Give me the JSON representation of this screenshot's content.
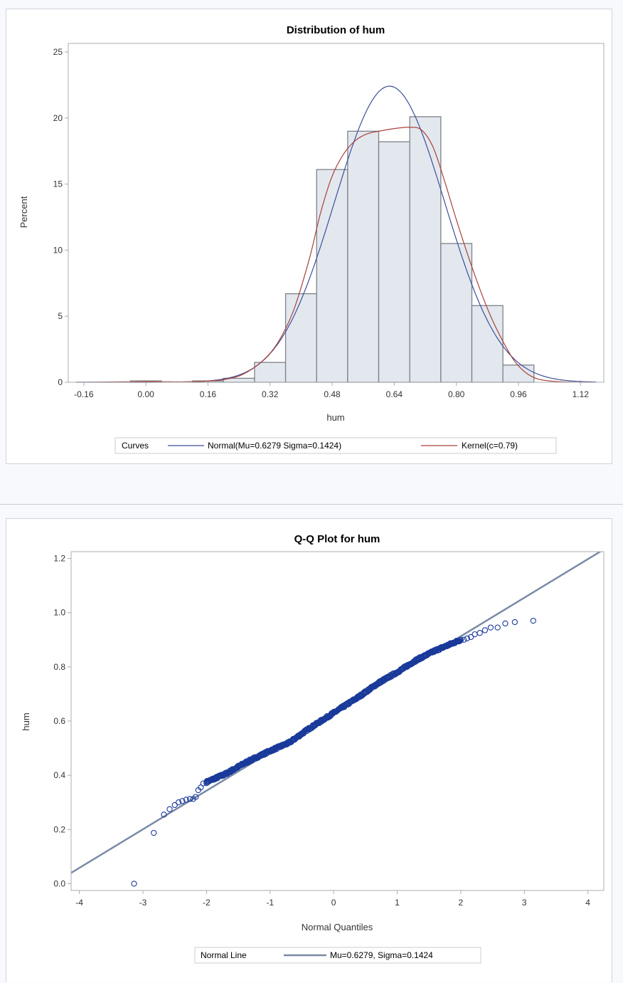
{
  "chart_data": [
    {
      "type": "bar",
      "title": "Distribution of hum",
      "xlabel": "hum",
      "ylabel": "Percent",
      "xlim": [
        -0.2,
        1.18
      ],
      "ylim": [
        0,
        25
      ],
      "xticks": [
        "-0.16",
        "0.00",
        "0.16",
        "0.32",
        "0.48",
        "0.64",
        "0.80",
        "0.96",
        "1.12"
      ],
      "xtick_values": [
        -0.16,
        0.0,
        0.16,
        0.32,
        0.48,
        0.64,
        0.8,
        0.96,
        1.12
      ],
      "yticks": [
        "0",
        "5",
        "10",
        "15",
        "20",
        "25"
      ],
      "ytick_values": [
        0,
        5,
        10,
        15,
        20,
        25
      ],
      "bin_width": 0.08,
      "bins": [
        {
          "center": 0.0,
          "value": 0.1
        },
        {
          "center": 0.08,
          "value": 0.0
        },
        {
          "center": 0.16,
          "value": 0.1
        },
        {
          "center": 0.24,
          "value": 0.3
        },
        {
          "center": 0.32,
          "value": 1.5
        },
        {
          "center": 0.4,
          "value": 6.7
        },
        {
          "center": 0.48,
          "value": 16.1
        },
        {
          "center": 0.56,
          "value": 19.0
        },
        {
          "center": 0.64,
          "value": 18.2
        },
        {
          "center": 0.72,
          "value": 20.1
        },
        {
          "center": 0.8,
          "value": 10.5
        },
        {
          "center": 0.88,
          "value": 5.8
        },
        {
          "center": 0.96,
          "value": 1.3
        }
      ],
      "curves": [
        {
          "name": "Normal(Mu=0.6279 Sigma=0.1424)",
          "kind": "normal",
          "mu": 0.6279,
          "sigma": 0.1424,
          "color": "#3d4f9a"
        },
        {
          "name": "Kernel(c=0.79)",
          "kind": "kernel",
          "c": 0.79,
          "color": "#a9423a",
          "points": [
            [
              -0.18,
              0.0
            ],
            [
              -0.05,
              0.03
            ],
            [
              0.0,
              0.06
            ],
            [
              0.05,
              0.04
            ],
            [
              0.1,
              0.03
            ],
            [
              0.15,
              0.08
            ],
            [
              0.2,
              0.2
            ],
            [
              0.25,
              0.6
            ],
            [
              0.3,
              1.6
            ],
            [
              0.34,
              3.0
            ],
            [
              0.38,
              5.4
            ],
            [
              0.42,
              9.2
            ],
            [
              0.45,
              12.8
            ],
            [
              0.48,
              15.6
            ],
            [
              0.51,
              17.3
            ],
            [
              0.54,
              18.3
            ],
            [
              0.57,
              18.8
            ],
            [
              0.6,
              19.0
            ],
            [
              0.64,
              19.2
            ],
            [
              0.68,
              19.3
            ],
            [
              0.71,
              19.1
            ],
            [
              0.74,
              17.8
            ],
            [
              0.77,
              15.2
            ],
            [
              0.8,
              12.3
            ],
            [
              0.83,
              9.6
            ],
            [
              0.86,
              7.1
            ],
            [
              0.89,
              4.9
            ],
            [
              0.92,
              3.1
            ],
            [
              0.95,
              1.6
            ],
            [
              0.98,
              0.7
            ],
            [
              1.01,
              0.25
            ],
            [
              1.05,
              0.07
            ],
            [
              1.1,
              0.01
            ],
            [
              1.15,
              0.0
            ]
          ]
        }
      ],
      "legend": {
        "title": "Curves",
        "placement": "bottom"
      }
    },
    {
      "type": "scatter",
      "title": "Q-Q Plot for hum",
      "xlabel": "Normal Quantiles",
      "ylabel": "hum",
      "xlim": [
        -4.13,
        4.25
      ],
      "ylim": [
        -0.025,
        1.225
      ],
      "xticks": [
        "-4",
        "-3",
        "-2",
        "-1",
        "0",
        "1",
        "2",
        "3",
        "4"
      ],
      "xtick_values": [
        -4,
        -3,
        -2,
        -1,
        0,
        1,
        2,
        3,
        4
      ],
      "yticks": [
        "0.0",
        "0.2",
        "0.4",
        "0.6",
        "0.8",
        "1.0",
        "1.2"
      ],
      "ytick_values": [
        0.0,
        0.2,
        0.4,
        0.6,
        0.8,
        1.0,
        1.2
      ],
      "reference_line": {
        "name": "Mu=0.6279, Sigma=0.1424",
        "intercept": 0.6279,
        "slope": 0.1424,
        "color": "#7a8aa6"
      },
      "point_color": "#1a3a9a",
      "tail_points": [
        [
          -3.14,
          0.0
        ],
        [
          -2.83,
          0.1875
        ],
        [
          -2.67,
          0.255
        ],
        [
          -2.58,
          0.275
        ],
        [
          -2.5,
          0.29
        ],
        [
          -2.44,
          0.3
        ],
        [
          -2.38,
          0.305
        ],
        [
          -2.32,
          0.31
        ],
        [
          -2.26,
          0.3125
        ],
        [
          -2.21,
          0.3125
        ],
        [
          -2.17,
          0.32
        ],
        [
          -2.13,
          0.345
        ],
        [
          -2.09,
          0.355
        ],
        [
          -2.05,
          0.37
        ],
        [
          -2.0,
          0.375
        ],
        [
          2.0,
          0.9
        ],
        [
          2.05,
          0.9
        ],
        [
          2.1,
          0.905
        ],
        [
          2.16,
          0.91
        ],
        [
          2.22,
          0.92
        ],
        [
          2.3,
          0.925
        ],
        [
          2.38,
          0.935
        ],
        [
          2.47,
          0.945
        ],
        [
          2.58,
          0.945
        ],
        [
          2.7,
          0.96
        ],
        [
          2.85,
          0.965
        ],
        [
          3.14,
          0.97
        ]
      ],
      "body": {
        "from": -2.0,
        "to": 2.0,
        "count": 520,
        "deviation": [
          [
            -2.0,
            0.375
          ],
          [
            -1.7,
            0.405
          ],
          [
            -1.4,
            0.445
          ],
          [
            -1.0,
            0.49
          ],
          [
            -0.7,
            0.52
          ],
          [
            -0.4,
            0.57
          ],
          [
            0.0,
            0.63
          ],
          [
            0.4,
            0.69
          ],
          [
            0.7,
            0.74
          ],
          [
            1.0,
            0.78
          ],
          [
            1.3,
            0.825
          ],
          [
            1.6,
            0.86
          ],
          [
            1.8,
            0.88
          ],
          [
            2.0,
            0.9
          ]
        ]
      },
      "legend": {
        "title": "Normal Line",
        "placement": "bottom"
      }
    }
  ]
}
